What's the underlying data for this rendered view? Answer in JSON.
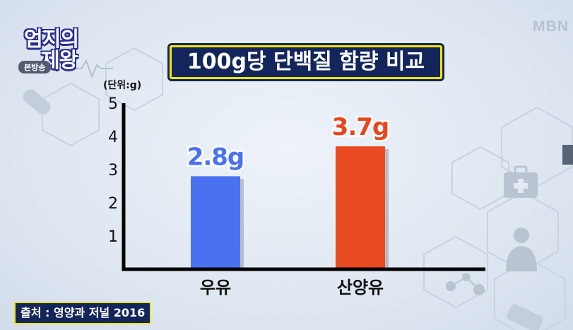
{
  "logo": {
    "line1": "엄지의",
    "line2": "제왕",
    "badge": "본방송"
  },
  "broadcaster": "MBN",
  "source": "출처 : 영양과 저널 2016",
  "chart_data": {
    "type": "bar",
    "title": "100g당 단백질 함량 비교",
    "unit_label": "(단위:g)",
    "categories": [
      "우유",
      "산양유"
    ],
    "values": [
      2.8,
      3.7
    ],
    "data_labels": [
      "2.8g",
      "3.7g"
    ],
    "colors": [
      "#4a72f0",
      "#ea4b22"
    ],
    "label_colors": [
      "#4a72f0",
      "#e8461d"
    ],
    "yticks": [
      1,
      2,
      3,
      4,
      5
    ],
    "ylim": [
      0,
      5
    ],
    "grid": false,
    "legend": "none"
  }
}
